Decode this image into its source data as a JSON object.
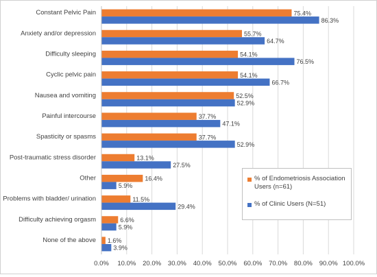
{
  "chart_data": {
    "type": "bar",
    "orientation": "horizontal",
    "categories": [
      "Constant Pelvic Pain",
      "Anxiety and/or depression",
      "Difficulty sleeping",
      "Cyclic pelvic pain",
      "Nausea and vomiting",
      "Painful intercourse",
      "Spasticity or spasms",
      "Post-traumatic stress disorder",
      "Other",
      "Problems with bladder/ urination",
      "Difficulty achieving orgasm",
      "None of the above"
    ],
    "series": [
      {
        "name": "% of Endometriosis Association Users (n=61)",
        "color": "#ED7D31",
        "values": [
          75.4,
          55.7,
          54.1,
          54.1,
          52.5,
          37.7,
          37.7,
          13.1,
          16.4,
          11.5,
          6.6,
          1.6
        ],
        "labels": [
          "75.4%",
          "55.7%",
          "54.1%",
          "54.1%",
          "52.5%",
          "37.7%",
          "37.7%",
          "13.1%",
          "16.4%",
          "11.5%",
          "6.6%",
          "1.6%"
        ]
      },
      {
        "name": "% of Clinic Users (N=51)",
        "color": "#4472C4",
        "values": [
          86.3,
          64.7,
          76.5,
          66.7,
          52.9,
          47.1,
          52.9,
          27.5,
          5.9,
          29.4,
          5.9,
          3.9
        ],
        "labels": [
          "86.3%",
          "64.7%",
          "76.5%",
          "66.7%",
          "52.9%",
          "47.1%",
          "52.9%",
          "27.5%",
          "5.9%",
          "29.4%",
          "5.9%",
          "3.9%"
        ]
      }
    ],
    "xlim": [
      0,
      100
    ],
    "xticks": [
      "0.0%",
      "10.0%",
      "20.0%",
      "30.0%",
      "40.0%",
      "50.0%",
      "60.0%",
      "70.0%",
      "80.0%",
      "90.0%",
      "100.0%"
    ],
    "grid": true,
    "legend_position": "right"
  }
}
